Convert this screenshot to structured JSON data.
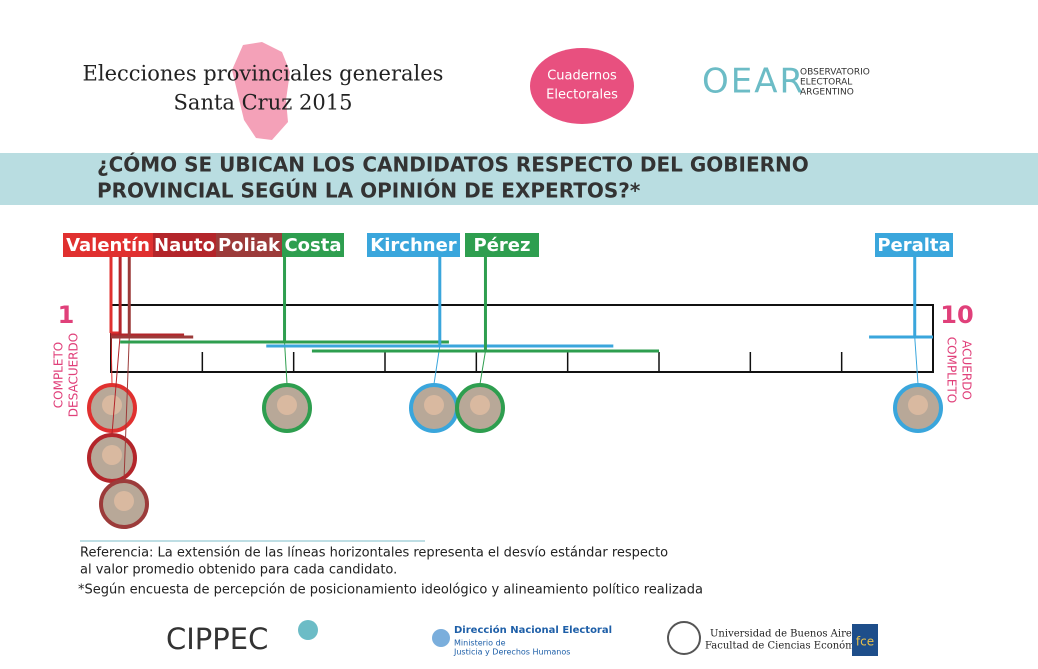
{
  "header": {
    "title_line1": "Elecciones provinciales generales",
    "title_line2": "Santa Cruz 2015",
    "badge_line1": "Cuadernos",
    "badge_line2": "Electorales",
    "logo": "OEAR",
    "logo_sub1": "OBSERVATORIO",
    "logo_sub2": "ELECTORAL",
    "logo_sub3": "ARGENTINO"
  },
  "chart_data": {
    "type": "dot-range",
    "title_line1": "¿CÓMO SE UBICAN LOS CANDIDATOS RESPECTO DEL GOBIERNO",
    "title_line2": "PROVINCIAL SEGÚN LA OPINIÓN DE EXPERTOS?*",
    "xlim": [
      1,
      10
    ],
    "xticks": [
      1,
      10
    ],
    "minor_xticks": [
      2,
      3,
      4,
      5,
      6,
      7,
      8,
      9
    ],
    "left_label_line1": "COMPLETO",
    "left_label_line2": "DESACUERDO",
    "right_label_line1": "COMPLETO",
    "right_label_line2": "ACUERDO",
    "series": [
      {
        "name": "Valentín",
        "color": "#e0302f",
        "mean": 1.0,
        "sd": 0.1
      },
      {
        "name": "Nauto",
        "color": "#b3252a",
        "mean": 1.1,
        "sd": 0.7
      },
      {
        "name": "Poliak",
        "color": "#9c3b3a",
        "mean": 1.2,
        "sd": 0.7
      },
      {
        "name": "Costa",
        "color": "#2e9e4f",
        "mean": 2.9,
        "sd": 1.8
      },
      {
        "name": "Kirchner",
        "color": "#3aa6dc",
        "mean": 4.6,
        "sd": 1.9
      },
      {
        "name": "Pérez",
        "color": "#2e9e4f",
        "mean": 5.1,
        "sd": 1.9
      },
      {
        "name": "Peralta",
        "color": "#3aa6dc",
        "mean": 9.8,
        "sd": 0.5
      }
    ]
  },
  "notes": {
    "reference_line1": "Referencia: La extensión de las líneas horizontales representa el desvío estándar respecto",
    "reference_line2": "al valor promedio obtenido para cada candidato.",
    "footnote": "*Según encuesta de percepción de posicionamiento ideológico y alineamiento político realizada"
  },
  "footer": {
    "cippec": "CIPPEC",
    "dne_line1": "Dirección Nacional Electoral",
    "dne_line2": "Ministerio de",
    "dne_line3": "Justicia y Derechos Humanos",
    "uba_line1": "Universidad de Buenos Aires",
    "uba_line2": "Facultad de Ciencias Económicas",
    "fce": "fce"
  }
}
